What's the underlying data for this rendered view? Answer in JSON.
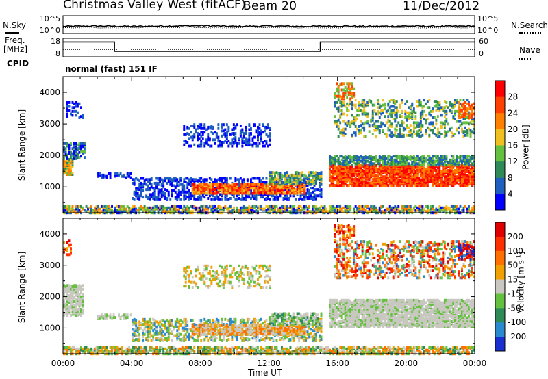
{
  "header": {
    "station": "Christmas Valley West (fitACF)",
    "beam": "Beam 20",
    "date": "11/Dec/2012"
  },
  "labels": {
    "nsky": "N.Sky",
    "nsearch": "N.Search",
    "nave": "Nave",
    "freq_line1": "Freq.",
    "freq_line2": "[MHz]",
    "cpid": "CPID",
    "cpid_value": "normal (fast) 151 IF",
    "range_axis": "Slant Range [km]",
    "time_axis": "Time UT",
    "power_label": "Power [dB]",
    "velocity_label": "Velocity [m s",
    "velocity_exp": "-1",
    "velocity_close": "]"
  },
  "chart_data": [
    {
      "type": "line",
      "name": "noise-panel",
      "ytick_labels_left": [
        "10^5",
        "10^0"
      ],
      "ytick_labels_right": [
        "10^5",
        "10^0"
      ],
      "x": [
        0,
        2,
        4,
        6,
        8,
        10,
        12,
        14,
        16,
        18,
        20,
        22,
        24
      ],
      "series": [
        {
          "name": "N.Sky",
          "values": [
            2.0,
            2.1,
            2.0,
            2.1,
            2.2,
            2.0,
            2.1,
            2.0,
            2.1,
            2.0,
            2.1,
            2.0,
            2.1
          ]
        },
        {
          "name": "N.Search",
          "values": [
            1.6,
            1.6,
            1.6,
            1.7,
            1.6,
            1.6,
            1.7,
            1.6,
            1.6,
            1.7,
            1.6,
            1.6,
            1.6
          ]
        }
      ]
    },
    {
      "type": "line",
      "name": "frequency-panel",
      "yticks_left": [
        "18",
        "8"
      ],
      "yticks_right": [
        "60",
        "0"
      ],
      "freq_steps": [
        [
          0,
          16.0
        ],
        [
          3.0,
          11.0
        ],
        [
          15.0,
          16.0
        ],
        [
          24,
          16.0
        ]
      ],
      "nave_level": 12.0
    },
    {
      "type": "heatmap",
      "name": "power",
      "xlim": [
        0,
        24
      ],
      "ylim": [
        180,
        4500
      ],
      "xticks": [
        "00:00",
        "04:00",
        "08:00",
        "12:00",
        "16:00",
        "20:00",
        "00:00"
      ],
      "yticks": [
        1000,
        2000,
        3000,
        4000
      ],
      "colorbar_ticks": [
        "4",
        "8",
        "12",
        "16",
        "20",
        "24",
        "28"
      ],
      "colors": [
        "#0000ff",
        "#1e5fbf",
        "#2e8b57",
        "#66c040",
        "#f0c020",
        "#ff8000",
        "#ff4000",
        "#ff0000"
      ]
    },
    {
      "type": "heatmap",
      "name": "velocity",
      "xlim": [
        0,
        24
      ],
      "ylim": [
        180,
        4500
      ],
      "xticks": [
        "00:00",
        "04:00",
        "08:00",
        "12:00",
        "16:00",
        "20:00",
        "00:00"
      ],
      "yticks": [
        1000,
        2000,
        3000,
        4000
      ],
      "colorbar_ticks": [
        "200",
        "100",
        "50",
        "15",
        "-15",
        "-50",
        "-100",
        "-200"
      ],
      "colors": [
        "#1a2fd0",
        "#2a8ad0",
        "#2e8b57",
        "#66c040",
        "#c8c8c0",
        "#f0a000",
        "#ff7000",
        "#ff3000",
        "#e00000"
      ]
    }
  ]
}
